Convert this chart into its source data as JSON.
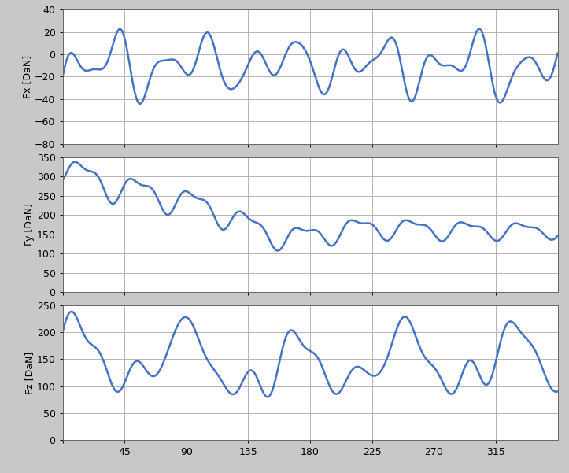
{
  "line_color": "#4472C4",
  "line_width": 1.8,
  "background_color": "#C8C8C8",
  "plot_background": "#FFFFFF",
  "ylabels": [
    "Fx [DaN]",
    "Fy [DaN]",
    "Fz [DaN]"
  ],
  "xlim": [
    0,
    360
  ],
  "xticks": [
    0,
    45,
    90,
    135,
    180,
    225,
    270,
    315
  ],
  "ylim_fx": [
    -80,
    40
  ],
  "yticks_fx": [
    -80,
    -60,
    -40,
    -20,
    0,
    20,
    40
  ],
  "ylim_fy": [
    0,
    350
  ],
  "yticks_fy": [
    0,
    50,
    100,
    150,
    200,
    250,
    300,
    350
  ],
  "ylim_fz": [
    0,
    250
  ],
  "yticks_fz": [
    0,
    50,
    100,
    150,
    200,
    250
  ]
}
